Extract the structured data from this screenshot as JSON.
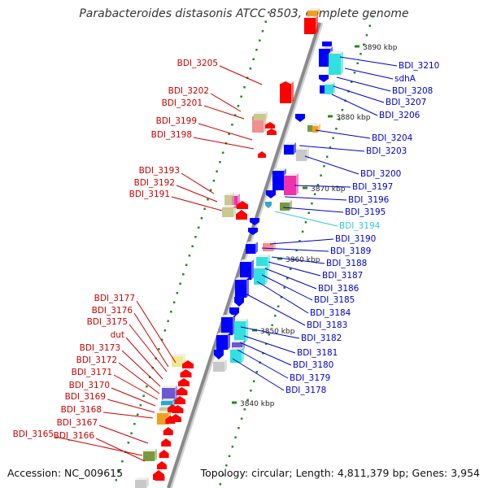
{
  "title": "Parabacteroides distasonis ATCC 8503, complete genome",
  "footer": {
    "accession": "Accession: NC_009615",
    "topology": "Topology: circular; Length: 4,811,379 bp; Genes: 3,954"
  },
  "colors": {
    "forward_label": "#cc0000",
    "reverse_label": "#0000cc",
    "highlight_label": "#33cccc",
    "backbone": "#8a8a8a",
    "tick": "#1e8c1e",
    "forward_gene": "#ff0000",
    "reverse_gene": "#0000ff",
    "cyan_gene": "#33e0e0",
    "magenta_gene": "#ee33aa",
    "khaki_gene": "#c8c890",
    "pink_gene": "#f09090",
    "olive_gene": "#7a9a3a",
    "gray_gene": "#c8c8c8",
    "orange_gene": "#f0a020",
    "purple_gene": "#6a5acd",
    "yellow_gene": "#f0e890"
  },
  "kbp_markers": [
    "3890 kbp",
    "3880 kbp",
    "3870 kbp",
    "3860 kbp",
    "3850 kbp",
    "3840 kbp"
  ],
  "forward_labels": [
    "BDI_3205",
    "BDI_3202",
    "BDI_3201",
    "BDI_3199",
    "BDI_3198",
    "BDI_3193",
    "BDI_3192",
    "BDI_3191",
    "BDI_3177",
    "BDI_3176",
    "BDI_3175",
    "dut",
    "BDI_3173",
    "BDI_3172",
    "BDI_3171",
    "BDI_3170",
    "BDI_3169",
    "BDI_3168",
    "BDI_3167",
    "BDI_3165",
    "BDI_3166"
  ],
  "reverse_labels": [
    "BDI_3210",
    "sdhA",
    "BDI_3208",
    "BDI_3207",
    "BDI_3206",
    "BDI_3204",
    "BDI_3203",
    "BDI_3200",
    "BDI_3197",
    "BDI_3196",
    "BDI_3195",
    "BDI_3194",
    "BDI_3190",
    "BDI_3189",
    "BDI_3188",
    "BDI_3187",
    "BDI_3186",
    "BDI_3185",
    "BDI_3184",
    "BDI_3183",
    "BDI_3182",
    "BDI_3181",
    "BDI_3180",
    "BDI_3179",
    "BDI_3178"
  ],
  "highlighted_label": "BDI_3194"
}
